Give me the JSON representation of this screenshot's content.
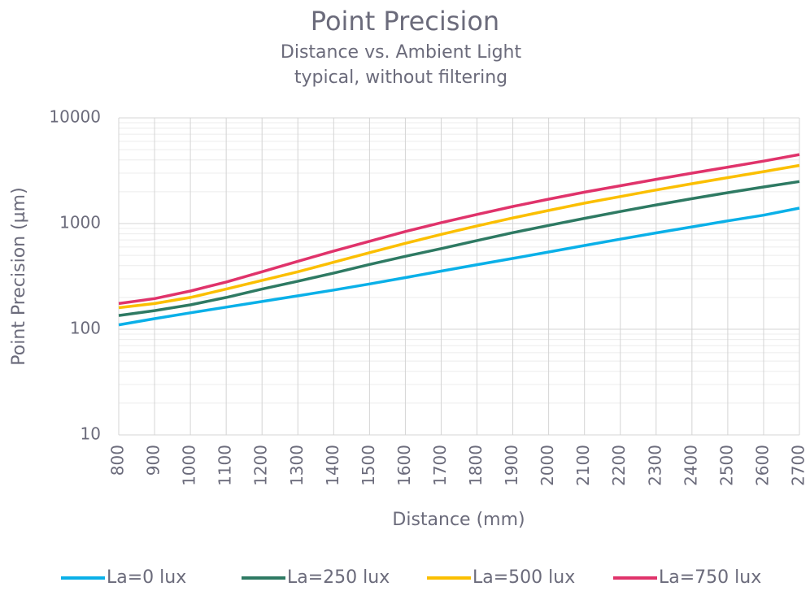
{
  "chart_data": {
    "type": "line",
    "title": "Point Precision",
    "subtitle": [
      "Distance vs. Ambient Light",
      "typical, without filtering"
    ],
    "x_label": "Distance (mm)",
    "y_label": "Point Precision (µm)",
    "x": [
      800,
      900,
      1000,
      1100,
      1200,
      1300,
      1400,
      1500,
      1600,
      1700,
      1800,
      1900,
      2000,
      2100,
      2200,
      2300,
      2400,
      2500,
      2600,
      2700
    ],
    "xlim": [
      800,
      2700
    ],
    "xticks": [
      800,
      900,
      1000,
      1100,
      1200,
      1300,
      1400,
      1500,
      1600,
      1700,
      1800,
      1900,
      2000,
      2100,
      2200,
      2300,
      2400,
      2500,
      2600,
      2700
    ],
    "ylim": [
      10,
      10000
    ],
    "yticks": [
      10,
      100,
      1000,
      10000
    ],
    "log_y": true,
    "grid": true,
    "minor_grid": true,
    "legend": "bottom",
    "series": [
      {
        "name": "La=0 lux",
        "color": "#0ab0e8",
        "values": [
          110,
          126,
          143,
          162,
          183,
          207,
          235,
          268,
          308,
          355,
          408,
          468,
          538,
          620,
          712,
          815,
          930,
          1060,
          1200,
          1400
        ]
      },
      {
        "name": "La=250 lux",
        "color": "#2e7a63",
        "values": [
          135,
          150,
          170,
          200,
          240,
          285,
          340,
          410,
          490,
          580,
          690,
          820,
          960,
          1120,
          1300,
          1500,
          1720,
          1960,
          2220,
          2500
        ]
      },
      {
        "name": "La=500 lux",
        "color": "#fbbf00",
        "values": [
          160,
          175,
          200,
          240,
          290,
          350,
          430,
          530,
          650,
          790,
          950,
          1130,
          1330,
          1560,
          1800,
          2080,
          2380,
          2720,
          3100,
          3550
        ]
      },
      {
        "name": "La=750 lux",
        "color": "#e0336b",
        "values": [
          175,
          195,
          230,
          280,
          350,
          440,
          550,
          680,
          840,
          1020,
          1220,
          1450,
          1700,
          1980,
          2280,
          2620,
          3000,
          3420,
          3900,
          4500
        ]
      }
    ]
  }
}
